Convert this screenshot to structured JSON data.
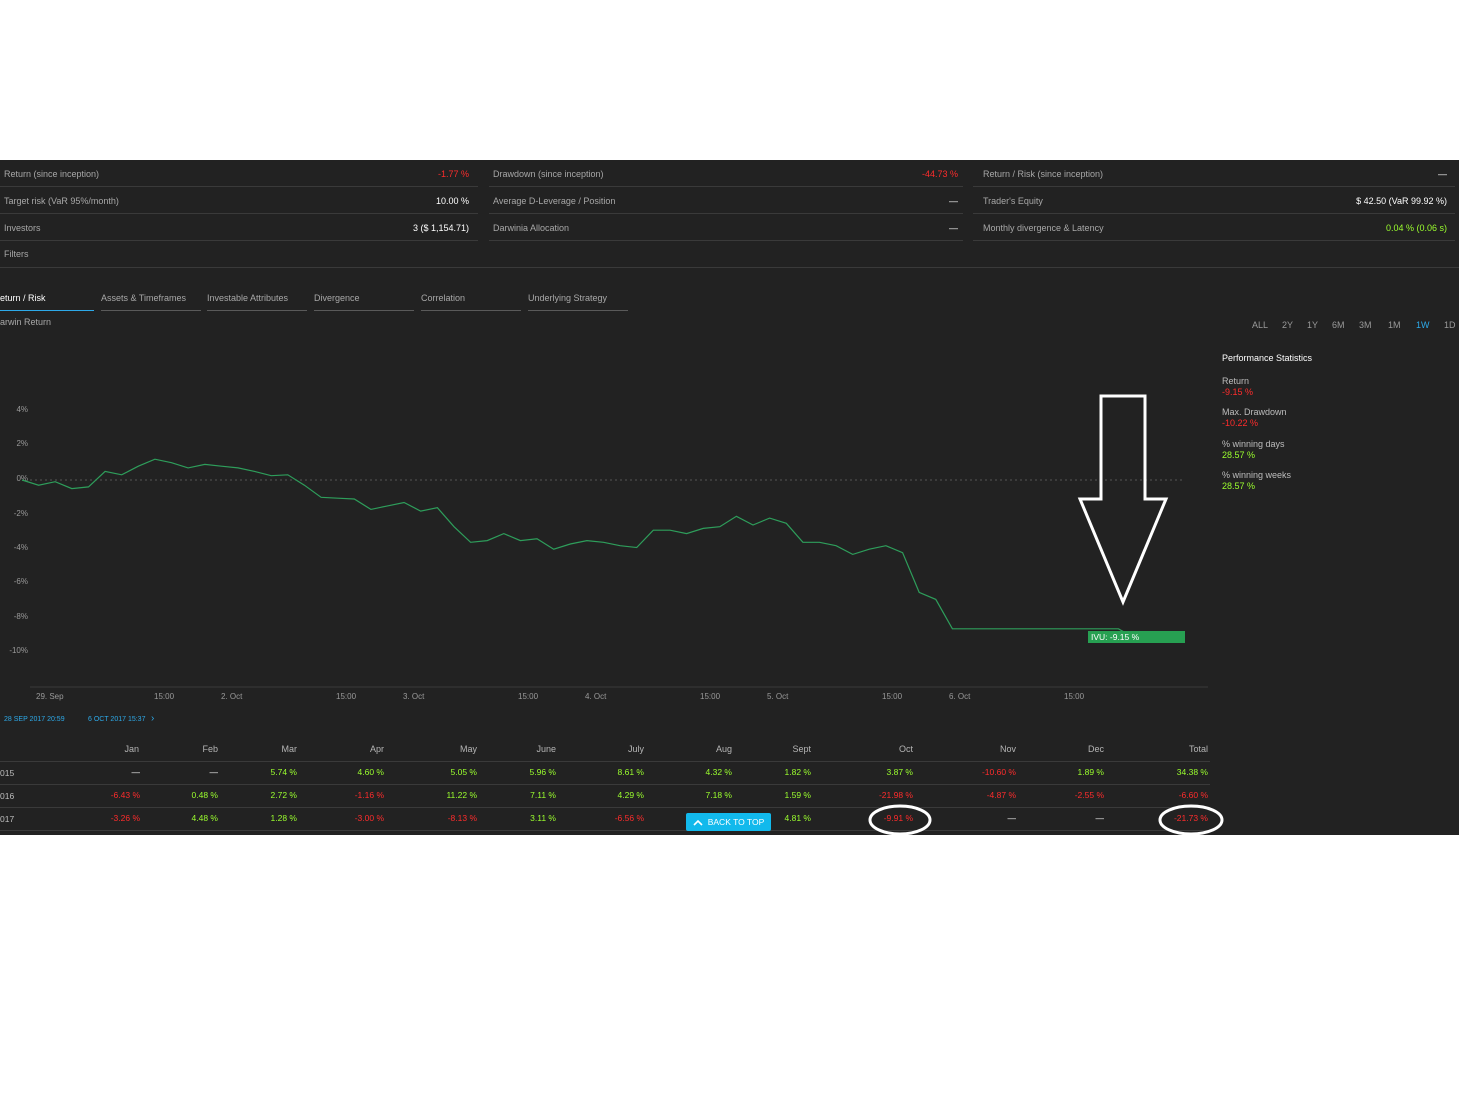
{
  "stats": {
    "return_label": "Return (since inception)",
    "return_value": "-1.77 %",
    "drawdown_label": "Drawdown (since inception)",
    "drawdown_value": "-44.73 %",
    "return_risk_label": "Return / Risk (since inception)",
    "return_risk_value": "—",
    "target_risk_label": "Target risk (VaR 95%/month)",
    "target_risk_value": "10.00 %",
    "avg_dleverage_label": "Average D-Leverage / Position",
    "avg_dleverage_value": "—",
    "traders_equity_label": "Trader's Equity",
    "traders_equity_value": "$ 42.50 (VaR 99.92 %)",
    "investors_label": "Investors",
    "investors_value": "3 ($ 1,154.71)",
    "darwinia_label": "Darwinia Allocation",
    "darwinia_value": "—",
    "divergence_label": "Monthly divergence & Latency",
    "divergence_value": "0.04 % (0.06 s)"
  },
  "filters_label": "Filters",
  "tabs": [
    "eturn / Risk",
    "Assets & Timeframes",
    "Investable Attributes",
    "Divergence",
    "Correlation",
    "Underlying Strategy"
  ],
  "chart_title": "arwin Return",
  "timeframes": [
    "ALL",
    "2Y",
    "1Y",
    "6M",
    "3M",
    "1M",
    "1W",
    "1D"
  ],
  "active_timeframe": "1W",
  "performance": {
    "title": "Performance Statistics",
    "items": [
      {
        "label": "Return",
        "value": "-9.15 %"
      },
      {
        "label": "Max. Drawdown",
        "value": "-10.22 %"
      },
      {
        "label": "% winning days",
        "value": "28.57 %"
      },
      {
        "label": "% winning weeks",
        "value": "28.57 %"
      }
    ]
  },
  "range": {
    "start": "28 SEP 2017 20:59",
    "end": "6 OCT 2017 15:37",
    "chevron": "›"
  },
  "chart_data": {
    "type": "line",
    "y_ticks": [
      "4%",
      "2%",
      "0%",
      "-2%",
      "-4%",
      "-6%",
      "-8%",
      "-10%"
    ],
    "ylim": [
      -10,
      4
    ],
    "x_ticks": [
      "29. Sep",
      "15:00",
      "2. Oct",
      "15:00",
      "3. Oct",
      "15:00",
      "4. Oct",
      "15:00",
      "5. Oct",
      "15:00",
      "6. Oct",
      "15:00"
    ],
    "tag_label": "IVU: -9.15 %",
    "series": [
      {
        "values": [
          0.0,
          -0.3,
          -0.1,
          -0.5,
          -0.4,
          0.5,
          0.3,
          0.8,
          1.2,
          1.0,
          0.7,
          0.9,
          0.8,
          0.7,
          0.5,
          0.25,
          0.3,
          -0.3,
          -1.0,
          -1.05,
          -1.1,
          -1.7,
          -1.5,
          -1.3,
          -1.8,
          -1.6,
          -2.7,
          -3.6,
          -3.5,
          -3.1,
          -3.5,
          -3.4,
          -4.0,
          -3.7,
          -3.5,
          -3.6,
          -3.8,
          -3.9,
          -2.9,
          -2.9,
          -3.1,
          -2.8,
          -2.7,
          -2.1,
          -2.6,
          -2.2,
          -2.5,
          -3.6,
          -3.6,
          -3.8,
          -4.3,
          -4.0,
          -3.8,
          -4.2,
          -6.5,
          -6.9,
          -8.6,
          -8.6,
          -8.6,
          -8.6,
          -8.6,
          -8.6,
          -8.6,
          -8.6,
          -8.6,
          -8.6,
          -8.6,
          -9.15,
          -9.15,
          -9.15,
          -9.15
        ]
      }
    ]
  },
  "monthly": {
    "headers": [
      "Jan",
      "Feb",
      "Mar",
      "Apr",
      "May",
      "June",
      "July",
      "Aug",
      "Sept",
      "Oct",
      "Nov",
      "Dec",
      "Total"
    ],
    "rows": [
      {
        "year": "015",
        "cells": [
          "—",
          "—",
          "5.74 %",
          "4.60 %",
          "5.05 %",
          "5.96 %",
          "8.61 %",
          "4.32 %",
          "1.82 %",
          "3.87 %",
          "-10.60 %",
          "1.89 %",
          "34.38 %"
        ]
      },
      {
        "year": "016",
        "cells": [
          "-6.43 %",
          "0.48 %",
          "2.72 %",
          "-1.16 %",
          "11.22 %",
          "7.11 %",
          "4.29 %",
          "7.18 %",
          "1.59 %",
          "-21.98 %",
          "-4.87 %",
          "-2.55 %",
          "-6.60 %"
        ]
      },
      {
        "year": "017",
        "cells": [
          "-3.26 %",
          "4.48 %",
          "1.28 %",
          "-3.00 %",
          "-8.13 %",
          "3.11 %",
          "-6.56 %",
          "",
          "4.81 %",
          "-9.91 %",
          "—",
          "—",
          "-21.73 %"
        ]
      }
    ]
  },
  "back_to_top_label": "BACK TO TOP",
  "colors": {
    "panel": "#222222",
    "positive": "#9bff2e",
    "negative": "#ff2c2c",
    "accent": "#2da9e8",
    "line": "#2e9e5b",
    "tag": "#27a052"
  }
}
